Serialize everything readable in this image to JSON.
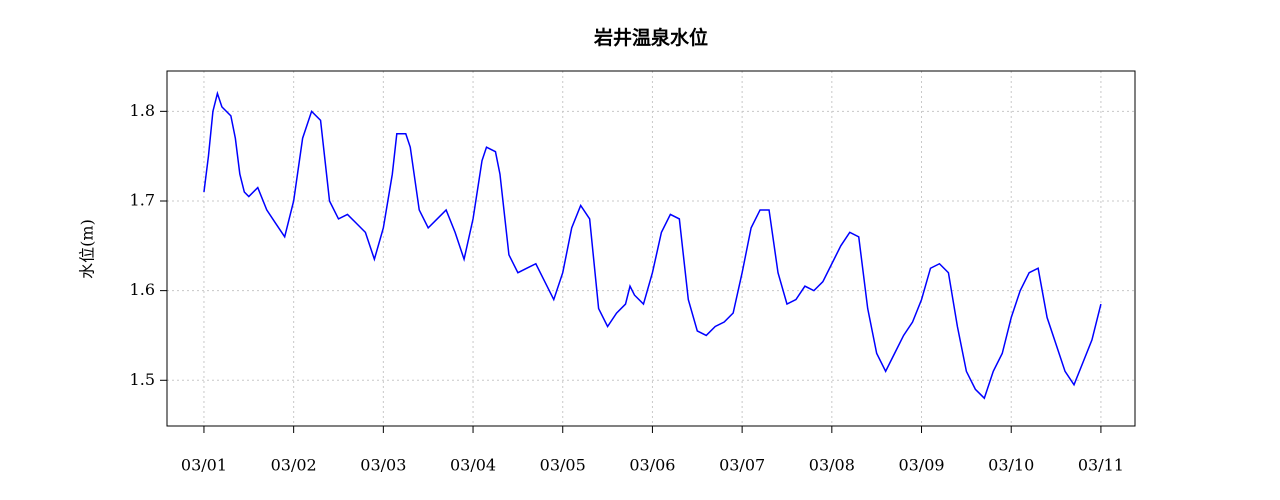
{
  "chart_data": {
    "type": "line",
    "title": "岩井温泉水位",
    "y_label": "水位(m)",
    "x": [
      1.0,
      1.05,
      1.1,
      1.15,
      1.2,
      1.3,
      1.35,
      1.4,
      1.45,
      1.5,
      1.6,
      1.7,
      1.8,
      1.9,
      2.0,
      2.1,
      2.2,
      2.3,
      2.4,
      2.5,
      2.6,
      2.7,
      2.8,
      2.9,
      3.0,
      3.1,
      3.15,
      3.25,
      3.3,
      3.4,
      3.5,
      3.6,
      3.7,
      3.8,
      3.9,
      4.0,
      4.1,
      4.15,
      4.25,
      4.3,
      4.4,
      4.5,
      4.6,
      4.7,
      4.8,
      4.9,
      5.0,
      5.1,
      5.2,
      5.3,
      5.4,
      5.5,
      5.6,
      5.7,
      5.75,
      5.8,
      5.9,
      6.0,
      6.1,
      6.2,
      6.3,
      6.4,
      6.5,
      6.6,
      6.7,
      6.8,
      6.9,
      7.0,
      7.1,
      7.2,
      7.3,
      7.4,
      7.5,
      7.6,
      7.7,
      7.8,
      7.9,
      8.0,
      8.1,
      8.2,
      8.3,
      8.4,
      8.5,
      8.6,
      8.7,
      8.8,
      8.9,
      9.0,
      9.1,
      9.2,
      9.3,
      9.4,
      9.5,
      9.6,
      9.7,
      9.8,
      9.9,
      10.0,
      10.1,
      10.2,
      10.3,
      10.4,
      10.5,
      10.6,
      10.7,
      10.8,
      10.9,
      11.0
    ],
    "series": [
      {
        "name": "水位",
        "color": "#0000ff",
        "values": [
          1.71,
          1.75,
          1.8,
          1.82,
          1.805,
          1.795,
          1.77,
          1.73,
          1.71,
          1.705,
          1.715,
          1.69,
          1.675,
          1.66,
          1.7,
          1.77,
          1.8,
          1.79,
          1.7,
          1.68,
          1.685,
          1.675,
          1.665,
          1.635,
          1.67,
          1.73,
          1.775,
          1.775,
          1.76,
          1.69,
          1.67,
          1.68,
          1.69,
          1.665,
          1.635,
          1.68,
          1.745,
          1.76,
          1.755,
          1.73,
          1.64,
          1.62,
          1.625,
          1.63,
          1.61,
          1.59,
          1.62,
          1.67,
          1.695,
          1.68,
          1.58,
          1.56,
          1.575,
          1.585,
          1.605,
          1.595,
          1.585,
          1.62,
          1.665,
          1.685,
          1.68,
          1.59,
          1.555,
          1.55,
          1.56,
          1.565,
          1.575,
          1.62,
          1.67,
          1.69,
          1.69,
          1.62,
          1.585,
          1.59,
          1.605,
          1.6,
          1.61,
          1.63,
          1.65,
          1.665,
          1.66,
          1.58,
          1.53,
          1.51,
          1.53,
          1.55,
          1.565,
          1.59,
          1.625,
          1.63,
          1.62,
          1.56,
          1.51,
          1.49,
          1.48,
          1.51,
          1.53,
          1.57,
          1.6,
          1.62,
          1.625,
          1.57,
          1.54,
          1.51,
          1.495,
          1.52,
          1.545,
          1.585
        ]
      }
    ],
    "xlim": [
      0.588,
      11.38
    ],
    "xticks": [
      {
        "value": 1,
        "label": "03/01"
      },
      {
        "value": 2,
        "label": "03/02"
      },
      {
        "value": 3,
        "label": "03/03"
      },
      {
        "value": 4,
        "label": "03/04"
      },
      {
        "value": 5,
        "label": "03/05"
      },
      {
        "value": 6,
        "label": "03/06"
      },
      {
        "value": 7,
        "label": "03/07"
      },
      {
        "value": 8,
        "label": "03/08"
      },
      {
        "value": 9,
        "label": "03/09"
      },
      {
        "value": 10,
        "label": "03/10"
      },
      {
        "value": 11,
        "label": "03/11"
      }
    ],
    "ylim": [
      1.449,
      1.845
    ],
    "yticks": [
      1.5,
      1.6,
      1.7,
      1.8
    ],
    "grid": true
  }
}
